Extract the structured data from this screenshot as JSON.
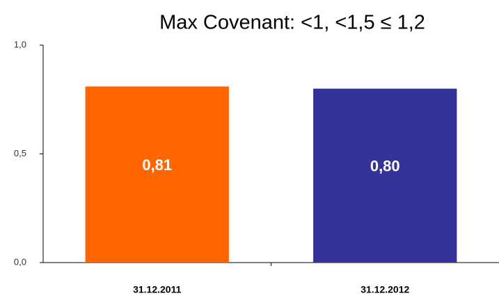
{
  "chart_data": {
    "type": "bar",
    "title": "Max Covenant: <1, <1,5  ≤ 1,2",
    "categories": [
      "31.12.2011",
      "31.12.2012"
    ],
    "values": [
      0.81,
      0.8
    ],
    "value_labels": [
      "0,81",
      "0,80"
    ],
    "colors": [
      "#ff6600",
      "#333399"
    ],
    "ylim": [
      0,
      1
    ],
    "yticks": [
      {
        "value": 0,
        "label": "0,0"
      },
      {
        "value": 0.5,
        "label": "0,5"
      },
      {
        "value": 1,
        "label": "1,0"
      }
    ],
    "grid": false
  }
}
